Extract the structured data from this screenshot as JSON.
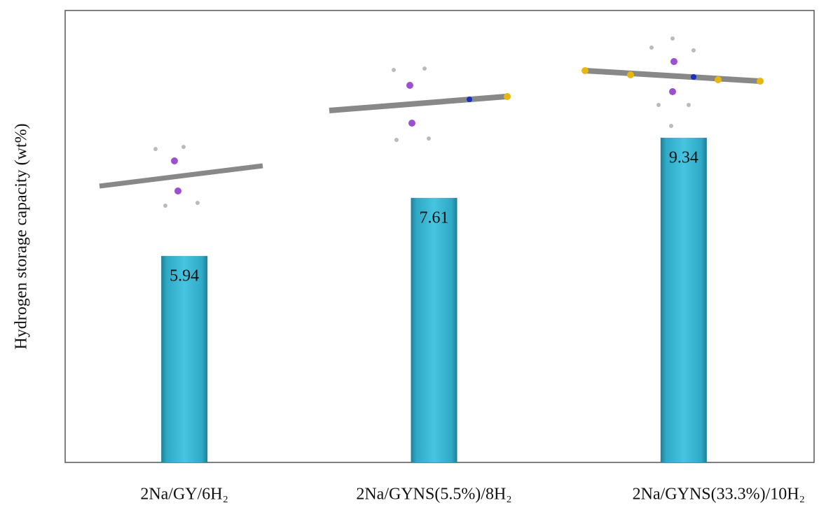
{
  "chart_data": {
    "type": "bar",
    "ylabel": "Hydrogen storage capacity (wt%)",
    "categories": [
      "2Na/GY/6H₂",
      "2Na/GYNS(5.5%)/8H₂",
      "2Na/GYNS(33.3%)/10H₂"
    ],
    "values": [
      5.94,
      7.61,
      9.34
    ],
    "color": "#3bbcd9",
    "ylim": [
      0,
      13
    ]
  }
}
